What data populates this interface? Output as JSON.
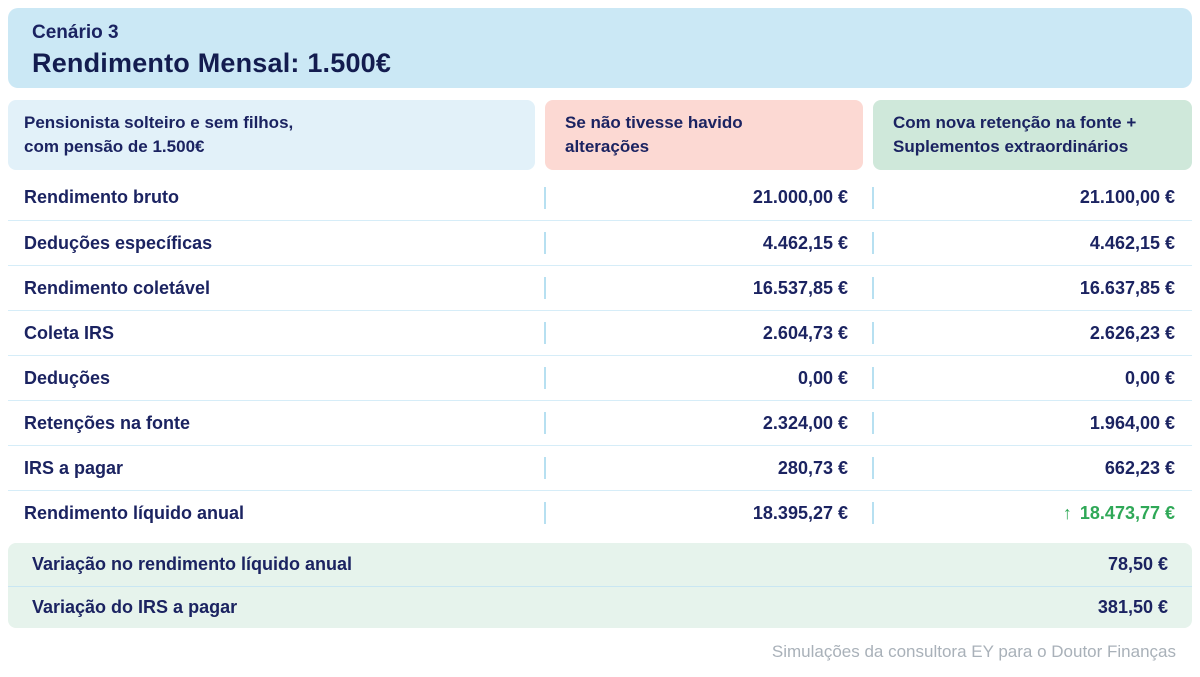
{
  "colors": {
    "header_blue": "#cbe8f5",
    "profile_blue": "#e2f1f9",
    "before_pink": "#fcd9d3",
    "after_green": "#cfe8da",
    "summary_green": "#e6f3ec",
    "text_navy": "#1b2361",
    "title_navy": "#131c4f",
    "positive_green": "#2fa857",
    "row_divider": "#d6edf8",
    "tick_blue": "#b7e0f1",
    "footer_gray": "#a9b1b9"
  },
  "header": {
    "scenario": "Cenário 3",
    "title": "Rendimento Mensal: 1.500€"
  },
  "columns": {
    "profile": {
      "line1": "Pensionista solteiro e sem filhos,",
      "line2": "com pensão de 1.500€"
    },
    "before": {
      "line1": "Se não tivesse havido",
      "line2": "alterações"
    },
    "after": {
      "line1": "Com nova retenção na fonte +",
      "line2": "Suplementos extraordinários"
    }
  },
  "table": {
    "rows": [
      {
        "label": "Rendimento bruto",
        "before": "21.000,00 €",
        "after": "21.100,00 €"
      },
      {
        "label": "Deduções específicas",
        "before": "4.462,15 €",
        "after": "4.462,15 €"
      },
      {
        "label": "Rendimento coletável",
        "before": "16.537,85 €",
        "after": "16.637,85 €"
      },
      {
        "label": "Coleta IRS",
        "before": "2.604,73 €",
        "after": "2.626,23 €"
      },
      {
        "label": "Deduções",
        "before": "0,00 €",
        "after": "0,00 €"
      },
      {
        "label": "Retenções na fonte",
        "before": "2.324,00 €",
        "after": "1.964,00 €"
      },
      {
        "label": "IRS a pagar",
        "before": "280,73 €",
        "after": "662,23 €"
      },
      {
        "label": "Rendimento líquido anual",
        "before": "18.395,27 €",
        "after": "18.473,77 €",
        "arrow": "↑"
      }
    ]
  },
  "summary": {
    "rows": [
      {
        "label": "Variação no rendimento líquido anual",
        "value": "78,50 €"
      },
      {
        "label": "Variação do IRS a pagar",
        "value": "381,50 €"
      }
    ]
  },
  "footer": {
    "credit": "Simulações da consultora EY para o Doutor Finanças"
  },
  "chart_data": {
    "type": "table",
    "title": "Cenário 3 — Rendimento Mensal: 1.500€",
    "columns": [
      "Pensionista solteiro e sem filhos, com pensão de 1.500€",
      "Se não tivesse havido alterações",
      "Com nova retenção na fonte + Suplementos extraordinários"
    ],
    "rows": [
      {
        "label": "Rendimento bruto",
        "sem_alteracoes": 21000.0,
        "com_nova_retencao": 21100.0
      },
      {
        "label": "Deduções específicas",
        "sem_alteracoes": 4462.15,
        "com_nova_retencao": 4462.15
      },
      {
        "label": "Rendimento coletável",
        "sem_alteracoes": 16537.85,
        "com_nova_retencao": 16637.85
      },
      {
        "label": "Coleta IRS",
        "sem_alteracoes": 2604.73,
        "com_nova_retencao": 2626.23
      },
      {
        "label": "Deduções",
        "sem_alteracoes": 0.0,
        "com_nova_retencao": 0.0
      },
      {
        "label": "Retenções na fonte",
        "sem_alteracoes": 2324.0,
        "com_nova_retencao": 1964.0
      },
      {
        "label": "IRS a pagar",
        "sem_alteracoes": 280.73,
        "com_nova_retencao": 662.23
      },
      {
        "label": "Rendimento líquido anual",
        "sem_alteracoes": 18395.27,
        "com_nova_retencao": 18473.77,
        "direction": "up"
      }
    ],
    "summary": [
      {
        "label": "Variação no rendimento líquido anual",
        "value": 78.5
      },
      {
        "label": "Variação do IRS a pagar",
        "value": 381.5
      }
    ],
    "units": "EUR",
    "source": "Simulações da consultora EY para o Doutor Finanças"
  }
}
